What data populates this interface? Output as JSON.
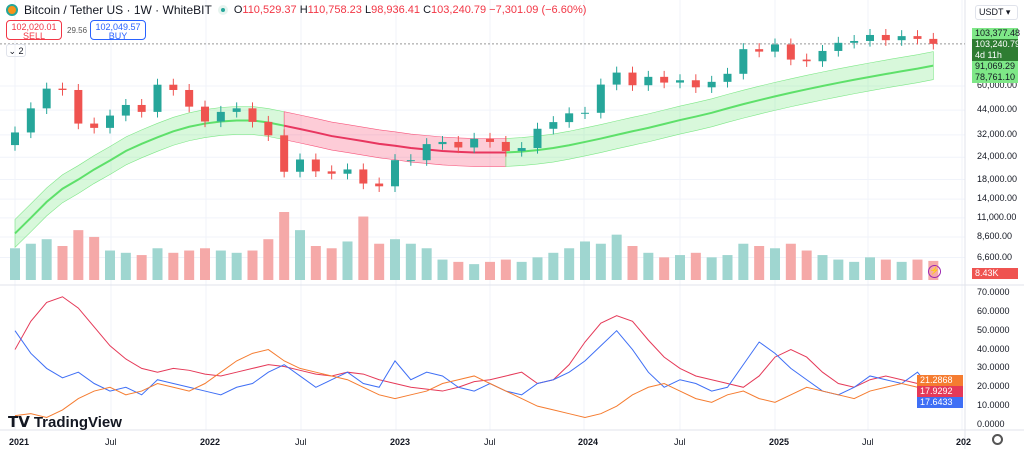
{
  "header": {
    "symbol": "Bitcoin / Tether US · 1W · WhiteBIT",
    "open_label": "O",
    "open": "110,529.37",
    "high_label": "H",
    "high": "110,758.23",
    "low_label": "L",
    "low": "98,936.41",
    "close_label": "C",
    "close": "103,240.79",
    "change": "−7,301.09 (−6.60%)"
  },
  "trade": {
    "sell_price": "102,020.01",
    "sell_label": "SELL",
    "spread": "29.56",
    "buy_price": "102,049.57",
    "buy_label": "BUY",
    "collapse_label": "2"
  },
  "currency": "USDT",
  "price_axis": {
    "labels": [
      "60,000.00",
      "44,000.00",
      "32,000.00",
      "24,000.00",
      "18,000.00",
      "14,000.00",
      "11,000.00",
      "8,600.00",
      "6,600.00"
    ],
    "ticks": [
      60000,
      44000,
      32000,
      24000,
      18000,
      14000,
      11000,
      8600,
      6600
    ]
  },
  "price_tags": [
    {
      "text": "103,377.48",
      "color": "#7ee787"
    },
    {
      "text": "103,240.79",
      "sub": "4d 11h",
      "color": "#2e7d32"
    },
    {
      "text": "91,069.29",
      "color": "#7ee787"
    },
    {
      "text": "78,761.10",
      "color": "#7ee787"
    }
  ],
  "volume_tag": "8.43K",
  "indicator_axis": {
    "labels": [
      "70.0000",
      "60.0000",
      "50.0000",
      "40.0000",
      "30.0000",
      "20.0000",
      "10.0000",
      "0.0000"
    ],
    "ticks": [
      70,
      60,
      50,
      40,
      30,
      20,
      10,
      0
    ]
  },
  "indicator_tags": [
    {
      "text": "21.2868",
      "color": "#f57c30"
    },
    {
      "text": "17.9292",
      "color": "#e53958"
    },
    {
      "text": "17.6433",
      "color": "#3f6ff5"
    }
  ],
  "time_axis": [
    "2021",
    "Jul",
    "2022",
    "Jul",
    "2023",
    "Jul",
    "2024",
    "Jul",
    "2025",
    "Jul",
    "202"
  ],
  "brand": "TradingView",
  "colors": {
    "up": "#26a69a",
    "down": "#ef5350",
    "band_up": "#7ee787",
    "band_down": "#f7567c"
  },
  "chart_data": {
    "type": "candlestick",
    "scale": "log",
    "x_start": "2021-01",
    "x_step": "month",
    "close": [
      33000,
      45000,
      58000,
      57000,
      37000,
      35000,
      41000,
      47000,
      43000,
      61000,
      57000,
      46000,
      38000,
      43000,
      45000,
      37800,
      31800,
      19900,
      23300,
      20000,
      19400,
      20500,
      17100,
      16500,
      23100,
      23100,
      28400,
      29200,
      27200,
      30400,
      29200,
      26000,
      27000,
      34600,
      37700,
      42200,
      42500,
      61100,
      71300,
      60600,
      67500,
      62700,
      64600,
      59000,
      63300,
      70200,
      96400,
      93400,
      102400,
      84300,
      82500,
      94200,
      104600,
      107100,
      115700,
      108200,
      114000,
      110000,
      103240
    ],
    "volume_k": [
      14,
      16,
      18,
      15,
      22,
      19,
      13,
      12,
      11,
      14,
      12,
      13,
      14,
      13,
      12,
      13,
      18,
      30,
      22,
      15,
      14,
      17,
      28,
      16,
      18,
      16,
      14,
      9,
      8,
      7,
      8,
      9,
      8,
      10,
      12,
      14,
      17,
      16,
      20,
      15,
      12,
      10,
      11,
      12,
      10,
      11,
      16,
      15,
      14,
      16,
      13,
      11,
      9,
      8,
      10,
      9,
      8,
      9,
      8.43
    ],
    "band_center": [
      9000,
      11000,
      13500,
      16000,
      18000,
      20500,
      23000,
      26000,
      28500,
      31000,
      33500,
      35500,
      37000,
      38000,
      38500,
      38500,
      37500,
      36000,
      34500,
      33000,
      31500,
      30500,
      29500,
      28500,
      27800,
      27000,
      26500,
      26000,
      25700,
      25500,
      25500,
      25500,
      25800,
      26300,
      27000,
      28000,
      29200,
      30500,
      32000,
      33500,
      35000,
      36800,
      38700,
      40500,
      42500,
      45000,
      47500,
      50000,
      52500,
      55000,
      57500,
      60000,
      62500,
      65000,
      67500,
      70000,
      72500,
      75000,
      78000
    ],
    "band_trend": "red from 2022-06 to 2023-07, green otherwise",
    "indicator_lines": [
      {
        "color": "#e53958",
        "values": [
          40,
          55,
          65,
          68,
          62,
          52,
          42,
          35,
          30,
          28,
          30,
          29,
          27,
          26,
          28,
          30,
          32,
          31,
          29,
          27,
          26,
          28,
          27,
          24,
          22,
          20,
          19,
          18,
          20,
          23,
          24,
          26,
          28,
          22,
          24,
          32,
          44,
          54,
          58,
          55,
          45,
          36,
          30,
          26,
          24,
          22,
          20,
          26,
          36,
          40,
          36,
          28,
          22,
          20,
          24,
          26,
          24,
          22,
          18
        ]
      },
      {
        "color": "#3f6ff5",
        "values": [
          50,
          38,
          30,
          25,
          28,
          22,
          18,
          20,
          16,
          24,
          22,
          20,
          18,
          16,
          20,
          22,
          28,
          32,
          26,
          20,
          24,
          28,
          22,
          20,
          34,
          24,
          28,
          26,
          20,
          18,
          22,
          18,
          16,
          22,
          24,
          28,
          34,
          42,
          50,
          40,
          28,
          20,
          24,
          22,
          18,
          20,
          32,
          44,
          38,
          30,
          24,
          18,
          16,
          20,
          26,
          24,
          22,
          28,
          17.6
        ]
      },
      {
        "color": "#f57c30",
        "values": [
          5,
          6,
          4,
          8,
          14,
          18,
          20,
          16,
          18,
          22,
          20,
          18,
          22,
          28,
          34,
          38,
          40,
          34,
          30,
          28,
          26,
          24,
          20,
          16,
          14,
          16,
          18,
          22,
          24,
          26,
          22,
          18,
          14,
          10,
          8,
          6,
          4,
          6,
          10,
          16,
          20,
          22,
          18,
          14,
          12,
          16,
          18,
          14,
          12,
          16,
          20,
          18,
          16,
          14,
          18,
          20,
          22,
          20,
          21.3
        ]
      }
    ]
  }
}
